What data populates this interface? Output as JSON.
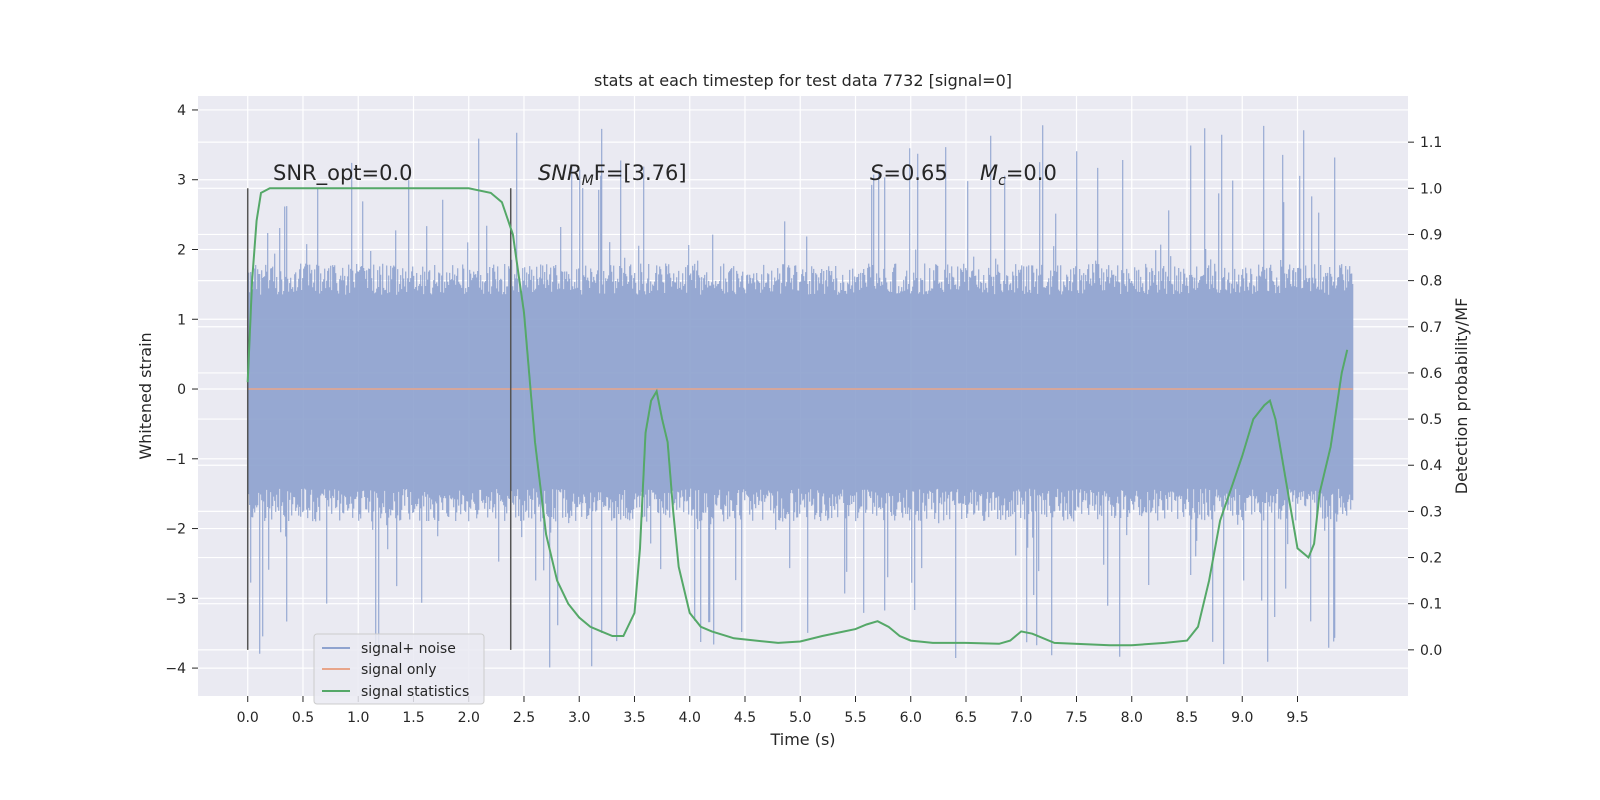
{
  "chart_data": {
    "type": "line",
    "title": "stats at each timestep for test data 7732 [signal=0]",
    "xlabel": "Time (s)",
    "ylabel": "Whitened strain",
    "y2label": "Detection probability/MF",
    "xlim": [
      -0.45,
      10.5
    ],
    "ylim": [
      -4.4,
      4.2
    ],
    "y2lim": [
      -0.1,
      1.2
    ],
    "x_ticks": [
      "0.0",
      "0.5",
      "1.0",
      "1.5",
      "2.0",
      "2.5",
      "3.0",
      "3.5",
      "4.0",
      "4.5",
      "5.0",
      "5.5",
      "6.0",
      "6.5",
      "7.0",
      "7.5",
      "8.0",
      "8.5",
      "9.0",
      "9.5"
    ],
    "y_ticks": [
      "4",
      "3",
      "2",
      "1",
      "0",
      "−1",
      "−2",
      "−3",
      "−4"
    ],
    "y2_ticks": [
      "1.1",
      "1.0",
      "0.9",
      "0.8",
      "0.7",
      "0.6",
      "0.5",
      "0.4",
      "0.3",
      "0.2",
      "0.1",
      "0.0"
    ],
    "grid": true,
    "legend_position": "bottom-left",
    "annotations": {
      "snr_opt": "SNR_opt=0.0",
      "snr_mf_sym": "SNR",
      "snr_mf_sub": "M",
      "snr_mf_rest": "F=[3.76]",
      "s_sym": "S",
      "s_rest": "=0.65",
      "mc_sym": "M",
      "mc_sub": "c",
      "mc_rest": "=0.0"
    },
    "vertical_markers": [
      0.0,
      2.38
    ],
    "series": [
      {
        "name": "signal+ noise",
        "color": "#8fa3cf",
        "x_range": [
          0.0,
          10.0
        ],
        "envelope": {
          "typical_max": 1.8,
          "typical_min": -1.9,
          "peak_max": 3.8,
          "peak_min": -4.0
        }
      },
      {
        "name": "signal only",
        "color": "#e8a58a",
        "x": [
          0.0,
          10.0
        ],
        "y": [
          0.0,
          0.0
        ]
      },
      {
        "name": "signal statistics",
        "color": "#55a868",
        "axis": "right",
        "x": [
          0.0,
          0.04,
          0.08,
          0.12,
          0.2,
          0.3,
          0.5,
          1.0,
          1.5,
          2.0,
          2.2,
          2.3,
          2.4,
          2.5,
          2.6,
          2.7,
          2.8,
          2.9,
          3.0,
          3.1,
          3.2,
          3.3,
          3.4,
          3.5,
          3.55,
          3.6,
          3.65,
          3.7,
          3.75,
          3.8,
          3.85,
          3.9,
          4.0,
          4.1,
          4.2,
          4.4,
          4.8,
          5.0,
          5.2,
          5.4,
          5.5,
          5.6,
          5.7,
          5.8,
          5.9,
          6.0,
          6.2,
          6.5,
          6.8,
          6.9,
          7.0,
          7.1,
          7.3,
          7.8,
          8.0,
          8.3,
          8.5,
          8.6,
          8.7,
          8.8,
          8.9,
          9.0,
          9.1,
          9.2,
          9.25,
          9.3,
          9.4,
          9.5,
          9.6,
          9.65,
          9.7,
          9.8,
          9.9,
          9.95
        ],
        "y": [
          0.58,
          0.8,
          0.93,
          0.99,
          1.0,
          1.0,
          1.0,
          1.0,
          1.0,
          1.0,
          0.99,
          0.97,
          0.9,
          0.73,
          0.45,
          0.25,
          0.15,
          0.1,
          0.07,
          0.05,
          0.04,
          0.03,
          0.03,
          0.08,
          0.22,
          0.47,
          0.54,
          0.56,
          0.5,
          0.45,
          0.3,
          0.18,
          0.08,
          0.05,
          0.04,
          0.025,
          0.015,
          0.018,
          0.03,
          0.04,
          0.045,
          0.055,
          0.062,
          0.05,
          0.03,
          0.02,
          0.015,
          0.015,
          0.013,
          0.02,
          0.04,
          0.035,
          0.015,
          0.01,
          0.01,
          0.015,
          0.02,
          0.05,
          0.15,
          0.28,
          0.35,
          0.42,
          0.5,
          0.53,
          0.54,
          0.5,
          0.36,
          0.22,
          0.2,
          0.23,
          0.34,
          0.44,
          0.6,
          0.65
        ]
      }
    ]
  }
}
